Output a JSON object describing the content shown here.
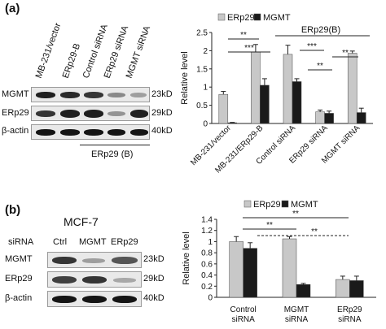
{
  "panel_a": {
    "label": "(a)",
    "blot": {
      "lanes": [
        "MB-231/vector",
        "ERp29-B",
        "Control siRNA",
        "ERp29 siRNA",
        "MGMT siRNA"
      ],
      "rows": [
        {
          "name": "MGMT",
          "size": "23kD"
        },
        {
          "name": "ERp29",
          "size": "29kD"
        },
        {
          "name": "β-actin",
          "size": "40kD"
        }
      ],
      "bracket_label": "ERp29 (B)"
    }
  },
  "panel_b": {
    "label": "(b)",
    "blot": {
      "cell_line": "MCF-7",
      "sirna_label": "siRNA",
      "lanes": [
        "Ctrl",
        "MGMT",
        "ERp29"
      ],
      "rows": [
        {
          "name": "MGMT",
          "size": "23kD"
        },
        {
          "name": "ERp29",
          "size": "29kD"
        },
        {
          "name": "β-actin",
          "size": "40kD"
        }
      ]
    }
  },
  "chart_data": [
    {
      "type": "bar",
      "ylabel": "Relative level",
      "ylim": [
        0,
        2.5
      ],
      "yticks": [
        "0",
        "0.5",
        "1",
        "1.5",
        "2",
        "2.5"
      ],
      "categories": [
        "MB-231/vector",
        "MB-231/ERp29-B",
        "Control siRNA",
        "ERp29 siRNA",
        "MGMT siRNA"
      ],
      "series": [
        {
          "name": "ERp29",
          "color": "#c8c8c8",
          "values": [
            0.8,
            1.97,
            1.9,
            0.32,
            1.93
          ],
          "errors": [
            0.08,
            0.2,
            0.25,
            0.05,
            0.06
          ]
        },
        {
          "name": "MGMT",
          "color": "#1a1a1a",
          "values": [
            0.02,
            1.05,
            1.15,
            0.28,
            0.3
          ],
          "errors": [
            0.01,
            0.18,
            0.08,
            0.06,
            0.12
          ]
        }
      ],
      "group_label": "ERp29(B)",
      "significance": [
        "**",
        "***",
        "***",
        "**",
        "**"
      ],
      "legend": "top"
    },
    {
      "type": "bar",
      "ylabel": "Relative level",
      "ylim": [
        0,
        1.4
      ],
      "yticks": [
        "0",
        "0.2",
        "0.4",
        "0.6",
        "0.8",
        "1",
        "1.2",
        "1.4"
      ],
      "categories": [
        "Control siRNA",
        "MGMT siRNA",
        "ERp29 siRNA"
      ],
      "series": [
        {
          "name": "ERp29",
          "color": "#c8c8c8",
          "values": [
            1.0,
            1.05,
            0.32
          ],
          "errors": [
            0.09,
            0.04,
            0.06
          ]
        },
        {
          "name": "MGMT",
          "color": "#1a1a1a",
          "values": [
            0.88,
            0.23,
            0.3
          ],
          "errors": [
            0.1,
            0.02,
            0.08
          ]
        }
      ],
      "significance": [
        "**",
        "**",
        "**"
      ],
      "legend": "top"
    }
  ]
}
